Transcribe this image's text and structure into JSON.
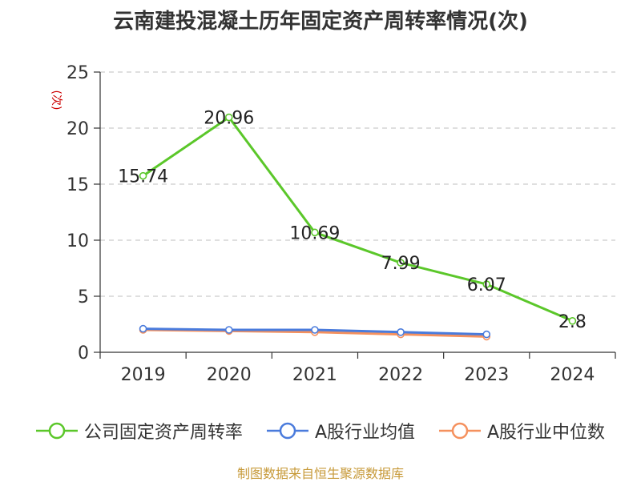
{
  "chart_data": {
    "type": "line",
    "title": "云南建投混凝土历年固定资产周转率情况(次)",
    "ylabel": "(次)",
    "categories": [
      "2019",
      "2020",
      "2021",
      "2022",
      "2023",
      "2024"
    ],
    "ylim": [
      0,
      25
    ],
    "yticks": [
      0,
      5,
      10,
      15,
      20,
      25
    ],
    "grid": true,
    "legend_position": "bottom",
    "series": [
      {
        "name": "公司固定资产周转率",
        "color": "#5bc72a",
        "values": [
          15.74,
          20.96,
          10.69,
          7.99,
          6.07,
          2.8
        ],
        "labels": [
          "15.74",
          "20.96",
          "10.69",
          "7.99",
          "6.07",
          "2.8"
        ]
      },
      {
        "name": "A股行业均值",
        "color": "#4a7bdc",
        "values": [
          2.1,
          2.0,
          2.0,
          1.8,
          1.6,
          null
        ]
      },
      {
        "name": "A股行业中位数",
        "color": "#f5915e",
        "values": [
          2.0,
          1.9,
          1.8,
          1.6,
          1.4,
          null
        ]
      }
    ]
  },
  "source": "制图数据来自恒生聚源数据库"
}
